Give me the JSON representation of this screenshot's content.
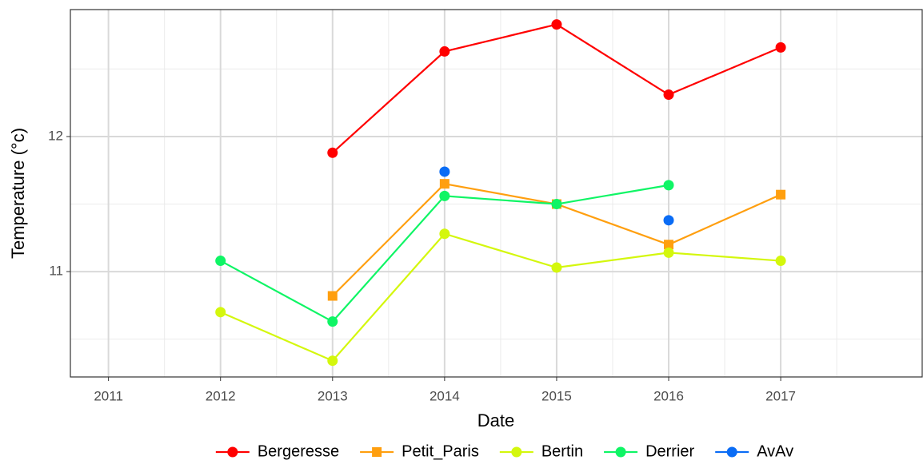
{
  "chart_data": {
    "type": "line",
    "x_label": "Date",
    "y_label": "Temperature (°c)",
    "x": [
      2012,
      2013,
      2014,
      2015,
      2016,
      2017
    ],
    "xlim": [
      2010.66,
      2018.27
    ],
    "xticks": [
      2011,
      2012,
      2013,
      2014,
      2015,
      2016,
      2017
    ],
    "ylim": [
      10.22,
      12.94
    ],
    "yticks": [
      11,
      12
    ],
    "grid": true,
    "minor_grid": true,
    "legend": "bottom",
    "series": [
      {
        "name": "Bergeresse",
        "color": "#ff0000",
        "marker": "circle",
        "values": [
          null,
          11.88,
          12.63,
          12.83,
          12.31,
          12.66
        ]
      },
      {
        "name": "Petit_Paris",
        "color": "#ff9f0f",
        "marker": "square",
        "values": [
          null,
          10.82,
          11.65,
          11.5,
          11.2,
          11.57
        ]
      },
      {
        "name": "Bertin",
        "color": "#d4f70d",
        "marker": "circle",
        "values": [
          10.7,
          10.34,
          11.28,
          11.03,
          11.14,
          11.08
        ]
      },
      {
        "name": "Derrier",
        "color": "#0ff565",
        "marker": "circle",
        "values": [
          11.08,
          10.63,
          11.56,
          11.5,
          11.64,
          null
        ]
      },
      {
        "name": "AvAv",
        "color": "#0a6cf5",
        "marker": "circle",
        "values": [
          null,
          null,
          11.74,
          null,
          11.38,
          null
        ]
      }
    ]
  }
}
